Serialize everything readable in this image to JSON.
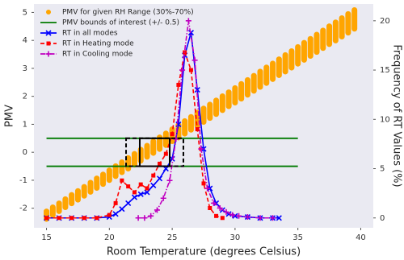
{
  "chart_data": {
    "type": "line",
    "x_label": "Room Temperature (degrees Celsius)",
    "y_label": "PMV",
    "y2_label": "Frequency of RT Values (%)",
    "xlim": [
      14,
      41
    ],
    "xticks": [
      15,
      20,
      25,
      30,
      35,
      40
    ],
    "ylim": [
      -2.7,
      5.3
    ],
    "yticks": [
      -2,
      -1,
      0,
      1,
      2,
      3,
      4,
      5
    ],
    "y2lim": [
      -1,
      21.7
    ],
    "y2ticks": [
      0,
      5,
      10,
      15,
      20
    ],
    "legend": "upper left",
    "series": [
      {
        "name": "PMV for given RH Range (30%-70%)",
        "type": "band",
        "color": "#ffa500",
        "marker": "o",
        "x": [
          15,
          15.5,
          16,
          16.5,
          17,
          17.5,
          18,
          18.5,
          19,
          19.5,
          20,
          20.5,
          21,
          21.5,
          22,
          22.5,
          23,
          23.5,
          24,
          24.5,
          25,
          25.5,
          26,
          26.5,
          27,
          27.5,
          28,
          28.5,
          29,
          29.5,
          30,
          30.5,
          31,
          31.5,
          32,
          32.5,
          33,
          33.5,
          34,
          34.5,
          35,
          35.5,
          36,
          36.5,
          37,
          37.5,
          38,
          38.5,
          39,
          39.5
        ],
        "min_values": [
          -2.4,
          -2.26,
          -2.12,
          -1.98,
          -1.84,
          -1.71,
          -1.57,
          -1.43,
          -1.29,
          -1.15,
          -1.01,
          -0.87,
          -0.73,
          -0.6,
          -0.46,
          -0.32,
          -0.18,
          -0.04,
          0.1,
          0.24,
          0.38,
          0.51,
          0.65,
          0.79,
          0.93,
          1.07,
          1.21,
          1.35,
          1.49,
          1.63,
          1.76,
          1.9,
          2.04,
          2.18,
          2.32,
          2.46,
          2.6,
          2.74,
          2.87,
          3.01,
          3.15,
          3.29,
          3.43,
          3.57,
          3.71,
          3.85,
          3.98,
          4.12,
          4.26,
          4.4
        ],
        "max_values": [
          -2.1,
          -1.95,
          -1.81,
          -1.66,
          -1.51,
          -1.37,
          -1.22,
          -1.07,
          -0.92,
          -0.78,
          -0.63,
          -0.48,
          -0.34,
          -0.19,
          -0.04,
          0.11,
          0.25,
          0.4,
          0.55,
          0.69,
          0.84,
          0.99,
          1.13,
          1.28,
          1.43,
          1.58,
          1.72,
          1.87,
          2.02,
          2.16,
          2.31,
          2.46,
          2.6,
          2.75,
          2.9,
          3.05,
          3.19,
          3.34,
          3.49,
          3.63,
          3.78,
          3.93,
          4.07,
          4.22,
          4.37,
          4.52,
          4.66,
          4.81,
          4.96,
          5.1
        ]
      },
      {
        "name": "PMV bounds of interest (+/- 0.5)",
        "type": "hline",
        "color": "#007a00",
        "x": [
          15,
          35
        ],
        "values": [
          0.5,
          -0.5
        ]
      },
      {
        "name": "RT in all modes",
        "type": "line",
        "axis": "y2",
        "color": "#0000ff",
        "marker": "x",
        "linestyle": "solid",
        "x": [
          15,
          16,
          17,
          18,
          19,
          20,
          20.5,
          21,
          21.5,
          22,
          22.5,
          23,
          23.5,
          24,
          24.5,
          25,
          25.5,
          26,
          26.5,
          27,
          27.5,
          28,
          28.5,
          29,
          29.5,
          30,
          31,
          32,
          33,
          33.5
        ],
        "values": [
          0,
          0,
          0,
          0,
          0,
          0.1,
          0.4,
          0.9,
          1.5,
          2.1,
          2.4,
          2.6,
          3.3,
          4.0,
          5.0,
          6.0,
          9.5,
          16.5,
          18.8,
          13,
          7,
          3,
          1.5,
          0.8,
          0.4,
          0.2,
          0.1,
          0,
          0,
          0
        ]
      },
      {
        "name": "RT in Heating mode",
        "type": "line",
        "axis": "y2",
        "color": "#ff0000",
        "marker": "s",
        "linestyle": "dashed",
        "x": [
          15,
          16,
          17,
          18,
          19,
          20,
          20.5,
          21,
          21.5,
          22,
          22.5,
          23,
          23.5,
          24,
          24.5,
          25,
          25.5,
          26,
          26.5,
          27,
          27.5,
          28,
          28.5,
          29
        ],
        "values": [
          0,
          0,
          0,
          0,
          0,
          0.3,
          1.5,
          3.8,
          3.2,
          2.6,
          3.4,
          3.0,
          4.3,
          5.5,
          6.5,
          8.5,
          13.5,
          16.8,
          15,
          9,
          3.5,
          1,
          0.2,
          0
        ]
      },
      {
        "name": "RT in Cooling mode",
        "type": "line",
        "axis": "y2",
        "color": "#c000c0",
        "marker": "+",
        "linestyle": "dashdot",
        "x": [
          22.3,
          22.8,
          23.3,
          23.8,
          24.3,
          24.8,
          25.3,
          25.8,
          26.3,
          26.8,
          27.3,
          27.8,
          28.3,
          28.8,
          29.3,
          29.8,
          30.3,
          31,
          32,
          33
        ],
        "values": [
          0,
          0,
          0.2,
          0.8,
          2,
          3.8,
          8,
          15,
          20,
          16,
          7,
          3,
          1.5,
          1,
          0.6,
          0.3,
          0.2,
          0.1,
          0,
          0
        ]
      }
    ],
    "annotations": [
      {
        "type": "rect",
        "x": [
          21.33,
          25.89
        ],
        "y": [
          -0.5,
          0.5
        ],
        "linestyle": "dashed",
        "color": "#000000"
      },
      {
        "type": "rect",
        "x": [
          22.42,
          24.8
        ],
        "y": [
          -0.5,
          0.5
        ],
        "linestyle": "solid",
        "color": "#000000"
      }
    ]
  }
}
